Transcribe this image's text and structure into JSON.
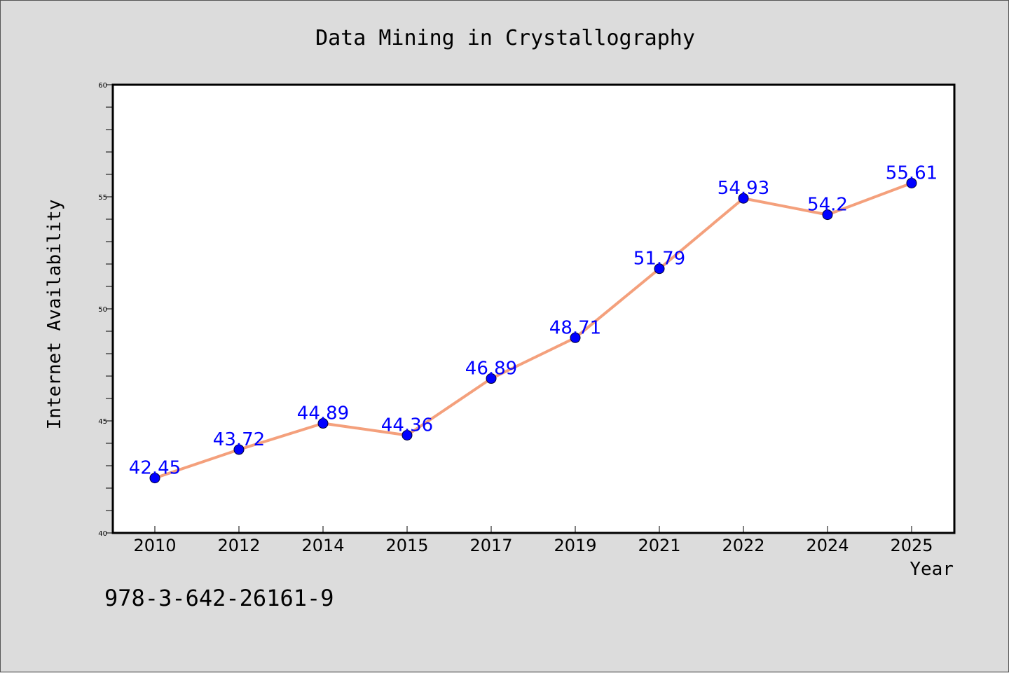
{
  "footer_code": "978-3-642-26161-9",
  "chart_data": {
    "type": "line",
    "title": "Data Mining in Crystallography",
    "xlabel": "Year",
    "ylabel": "Internet Availability",
    "categories": [
      "2010",
      "2012",
      "2014",
      "2015",
      "2017",
      "2019",
      "2021",
      "2022",
      "2024",
      "2025"
    ],
    "values": [
      42.45,
      43.72,
      44.89,
      44.36,
      46.89,
      48.71,
      51.79,
      54.93,
      54.2,
      55.61
    ],
    "data_labels": [
      "42.45",
      "43.72",
      "44.89",
      "44.36",
      "46.89",
      "48.71",
      "51.79",
      "54.93",
      "54.2",
      "55.61"
    ],
    "ylim": [
      40,
      60
    ],
    "yticks": [
      40,
      45,
      50,
      55,
      60
    ],
    "grid": false,
    "line_color": "#f4a07c",
    "marker_color": "#0000ff",
    "label_color": "#0000ff"
  }
}
